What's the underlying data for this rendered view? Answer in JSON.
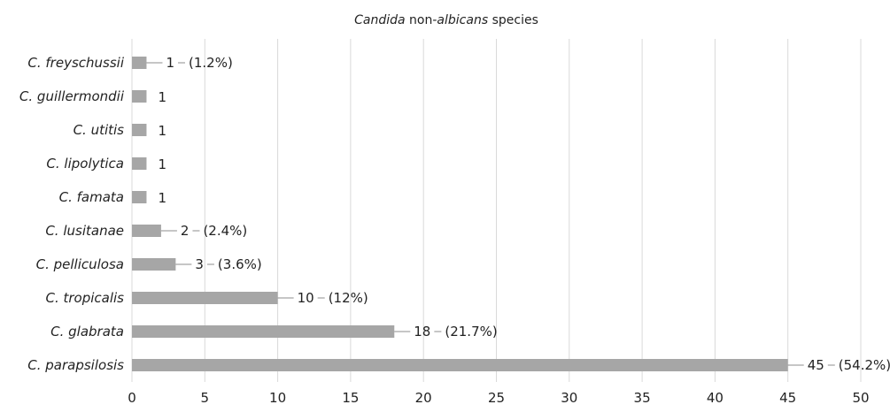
{
  "chart_data": {
    "type": "bar",
    "orientation": "horizontal",
    "title_parts": [
      {
        "text": "Candida",
        "italic": true
      },
      {
        "text": " non-",
        "italic": false
      },
      {
        "text": "albicans",
        "italic": true
      },
      {
        "text": " species",
        "italic": false
      }
    ],
    "categories": [
      "C. freyschussii",
      "C. guillermondii",
      "C. utitis",
      "C. lipolytica",
      "C. famata",
      "C. lusitanae",
      "C. pelliculosa",
      "C. tropicalis",
      "C. glabrata",
      "C. parapsilosis"
    ],
    "values": [
      1,
      1,
      1,
      1,
      1,
      2,
      3,
      10,
      18,
      45
    ],
    "value_labels": [
      "1",
      "1",
      "1",
      "1",
      "1",
      "2",
      "3",
      "10",
      "18",
      "45"
    ],
    "percent_labels": [
      "(1.2%)",
      "",
      "",
      "",
      "",
      "(2.4%)",
      "(3.6%)",
      "(12%)",
      "(21.7%)",
      "(54.2%)"
    ],
    "xlim": [
      0,
      50
    ],
    "xticks": [
      "0",
      "5",
      "10",
      "15",
      "20",
      "25",
      "30",
      "35",
      "40",
      "45",
      "50"
    ],
    "grid": "vertical",
    "bar_color": "#a6a6a6",
    "grid_color": "#d9d9d9"
  }
}
